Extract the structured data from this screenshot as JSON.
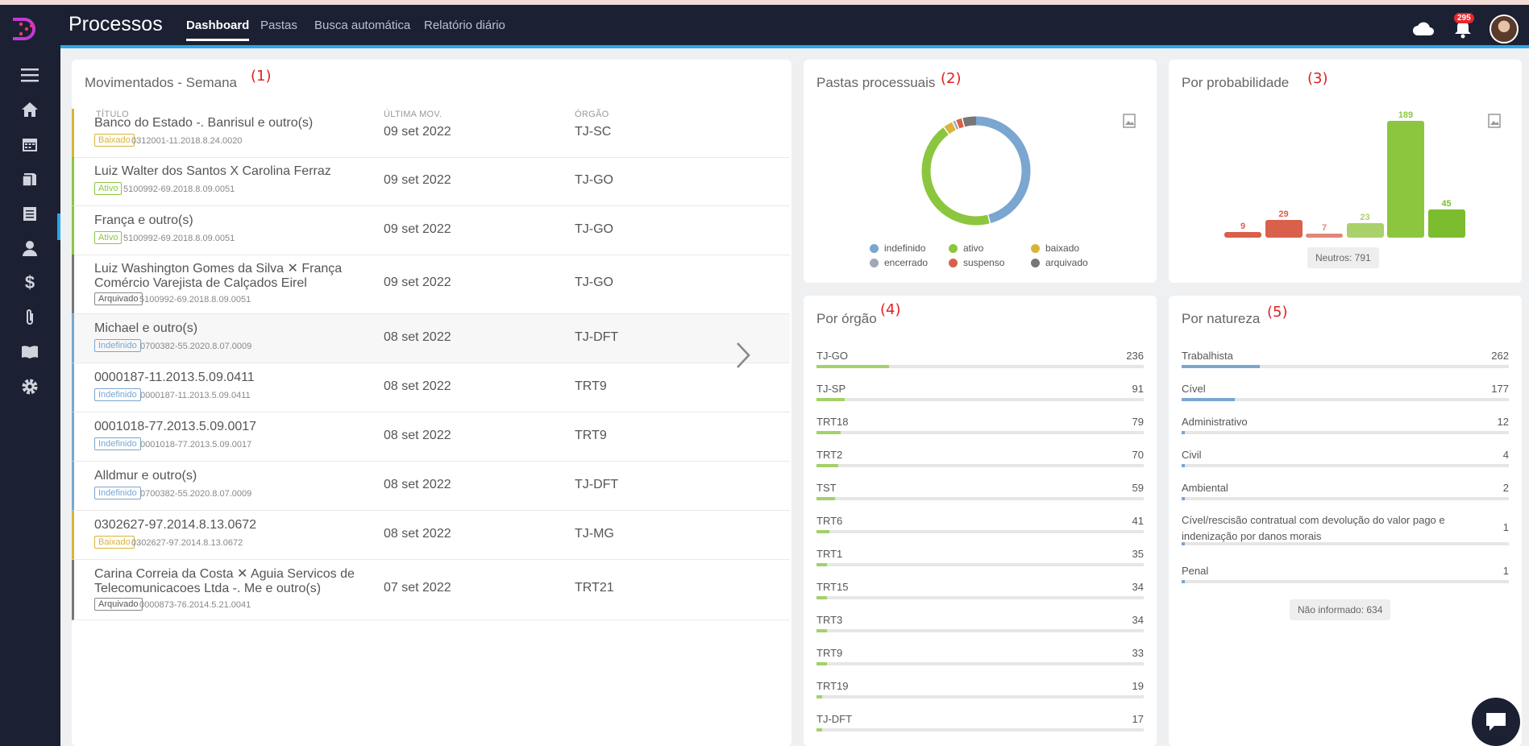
{
  "header": {
    "app_title": "Processos",
    "nav": [
      "Dashboard",
      "Pastas",
      "Busca automática",
      "Relatório diário"
    ],
    "notification_count": "295"
  },
  "sidebar": {
    "icons": [
      "menu-icon",
      "home-icon",
      "calendar-icon",
      "folders-icon",
      "documents-icon",
      "person-icon",
      "dollar-icon",
      "paperclip-icon",
      "book-icon",
      "gear-icon"
    ]
  },
  "moved": {
    "title": "Movimentados - Semana",
    "annot": "(1)",
    "headers": [
      "TÍTULO",
      "ÚLTIMA MOV.",
      "ÓRGÃO"
    ],
    "rows": [
      {
        "title_lines": [
          "Banco do Estado -. Banrisul e outro(s)"
        ],
        "badge": "Baixado",
        "status": "baixado",
        "code": "0312001-11.2018.8.24.0020",
        "date": "09 set 2022",
        "org": "TJ-SC"
      },
      {
        "title_lines": [
          "Luiz Walter dos Santos X Carolina Ferraz"
        ],
        "badge": "Ativo",
        "status": "ativo",
        "code": "5100992-69.2018.8.09.0051",
        "date": "09 set 2022",
        "org": "TJ-GO"
      },
      {
        "title_lines": [
          "França e outro(s)"
        ],
        "badge": "Ativo",
        "status": "ativo",
        "code": "5100992-69.2018.8.09.0051",
        "date": "09 set 2022",
        "org": "TJ-GO"
      },
      {
        "title_lines": [
          "Luiz Washington Gomes da Silva ✕ França",
          "Comércio Varejista de Calçados Eirel"
        ],
        "badge": "Arquivado",
        "status": "arquivado",
        "code": "5100992-69.2018.8.09.0051",
        "date": "09 set 2022",
        "org": "TJ-GO"
      },
      {
        "title_lines": [
          "Michael e outro(s)"
        ],
        "badge": "Indefinido",
        "status": "indefinido",
        "code": "0700382-55.2020.8.07.0009",
        "date": "08 set 2022",
        "org": "TJ-DFT"
      },
      {
        "title_lines": [
          "0000187-11.2013.5.09.0411"
        ],
        "badge": "Indefinido",
        "status": "indefinido",
        "code": "0000187-11.2013.5.09.0411",
        "date": "08 set 2022",
        "org": "TRT9"
      },
      {
        "title_lines": [
          "0001018-77.2013.5.09.0017"
        ],
        "badge": "Indefinido",
        "status": "indefinido",
        "code": "0001018-77.2013.5.09.0017",
        "date": "08 set 2022",
        "org": "TRT9"
      },
      {
        "title_lines": [
          "Alldmur e outro(s)"
        ],
        "badge": "Indefinido",
        "status": "indefinido",
        "code": "0700382-55.2020.8.07.0009",
        "date": "08 set 2022",
        "org": "TJ-DFT"
      },
      {
        "title_lines": [
          "0302627-97.2014.8.13.0672"
        ],
        "badge": "Baixado",
        "status": "baixado",
        "code": "0302627-97.2014.8.13.0672",
        "date": "08 set 2022",
        "org": "TJ-MG"
      },
      {
        "title_lines": [
          "Carina Correia da Costa ✕ Aguia Servicos de",
          "Telecomunicacoes Ltda -. Me e outro(s)"
        ],
        "badge": "Arquivado",
        "status": "arquivado",
        "code": "0000873-76.2014.5.21.0041",
        "date": "07 set 2022",
        "org": "TRT21"
      }
    ]
  },
  "status_colors": {
    "indefinido": "#7aa6d0",
    "ativo": "#8cc63f",
    "baixado": "#d9b43a",
    "encerrado": "#a0a8b8",
    "suspenso": "#d9604a",
    "arquivado": "#777777"
  },
  "pastas": {
    "title": "Pastas processuais",
    "annot": "(2)",
    "legend": [
      "indefinido",
      "ativo",
      "baixado",
      "encerrado",
      "suspenso",
      "arquivado"
    ],
    "donut_shares": {
      "indefinido": 0.46,
      "ativo": 0.44,
      "baixado": 0.03,
      "encerrado": 0.01,
      "suspenso": 0.02,
      "arquivado": 0.05
    }
  },
  "prob": {
    "title": "Por probabilidade",
    "annot": "(3)",
    "bars": [
      {
        "value": 9,
        "label": "9",
        "color": "#d9604a"
      },
      {
        "value": 29,
        "label": "29",
        "color": "#d9604a"
      },
      {
        "value": 7,
        "label": "7",
        "color": "#e0877a"
      },
      {
        "value": 23,
        "label": "23",
        "color": "#a9d26a"
      },
      {
        "value": 189,
        "label": "189",
        "color": "#8cc63f"
      },
      {
        "value": 45,
        "label": "45",
        "color": "#7cbc2f"
      }
    ],
    "neutral": "Neutros: 791"
  },
  "orgao": {
    "title": "Por órgão",
    "annot": "(4)",
    "max": 1060,
    "items": [
      {
        "label": "TJ-GO",
        "value": "236"
      },
      {
        "label": "TJ-SP",
        "value": "91"
      },
      {
        "label": "TRT18",
        "value": "79"
      },
      {
        "label": "TRT2",
        "value": "70"
      },
      {
        "label": "TST",
        "value": "59"
      },
      {
        "label": "TRT6",
        "value": "41"
      },
      {
        "label": "TRT1",
        "value": "35"
      },
      {
        "label": "TRT15",
        "value": "34"
      },
      {
        "label": "TRT3",
        "value": "34"
      },
      {
        "label": "TRT9",
        "value": "33"
      },
      {
        "label": "TRT19",
        "value": "19"
      },
      {
        "label": "TJ-DFT",
        "value": "17"
      }
    ]
  },
  "natureza": {
    "title": "Por natureza",
    "annot": "(5)",
    "max": 1093,
    "items": [
      {
        "label": "Trabalhista",
        "value": "262"
      },
      {
        "label": "Cível",
        "value": "177"
      },
      {
        "label": "Administrativo",
        "value": "12"
      },
      {
        "label": "Civil",
        "value": "4"
      },
      {
        "label": "Ambiental",
        "value": "2"
      },
      {
        "label": "Cível/rescisão contratual com devolução do valor pago e indenização por danos morais",
        "value": "1"
      },
      {
        "label": "Penal",
        "value": "1"
      }
    ],
    "not_informed": "Não informado: 634"
  }
}
